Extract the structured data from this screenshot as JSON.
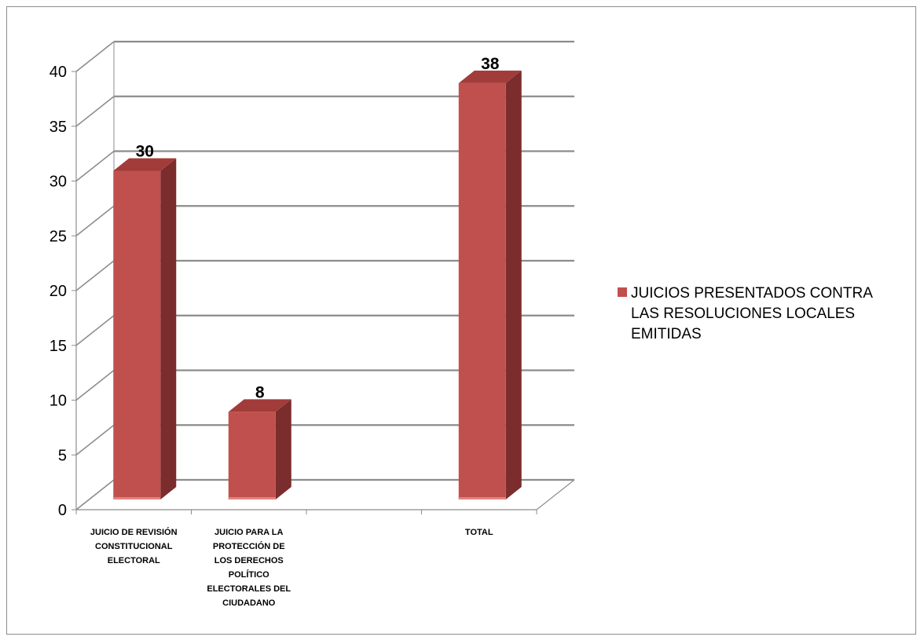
{
  "chart_data": {
    "type": "bar",
    "categories": [
      [
        "JUICIO DE REVISIÓN",
        "CONSTITUCIONAL",
        "ELECTORAL"
      ],
      [
        "JUICIO PARA LA",
        "PROTECCIÓN DE",
        "LOS DERECHOS",
        "POLÍTICO",
        "ELECTORALES DEL",
        "CIUDADANO"
      ],
      [],
      [
        "TOTAL"
      ]
    ],
    "series": [
      {
        "name": [
          "JUICIOS PRESENTADOS CONTRA",
          "LAS RESOLUCIONES LOCALES",
          "EMITIDAS"
        ],
        "values": [
          30,
          8,
          null,
          38
        ],
        "color": "#c0504d",
        "side_color": "#7b2c2c",
        "top_color": "#a23c3a"
      }
    ],
    "data_labels": [
      "30",
      "8",
      "",
      "38"
    ],
    "yticks": [
      "0",
      "5",
      "10",
      "15",
      "20",
      "25",
      "30",
      "35",
      "40"
    ],
    "ylim": [
      0,
      40
    ],
    "grid": true,
    "legend_position": "right",
    "three_d": true
  }
}
